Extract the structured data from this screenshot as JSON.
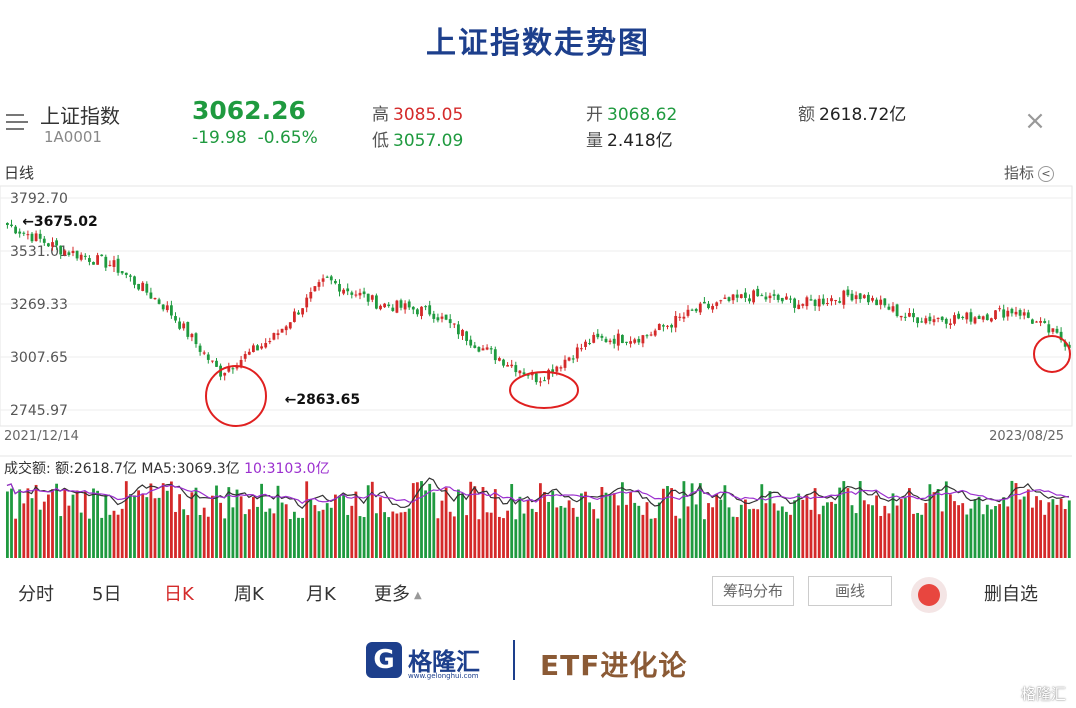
{
  "page_title": "上证指数走势图",
  "quote": {
    "name": "上证指数",
    "code": "1A0001",
    "price": "3062.26",
    "change": "-19.98",
    "change_pct": "-0.65%",
    "high_label": "高",
    "high": "3085.05",
    "low_label": "低",
    "low": "3057.09",
    "open_label": "开",
    "open": "3068.62",
    "volume_label": "量",
    "volume": "2.418亿",
    "amount_label": "额",
    "amount": "2618.72亿"
  },
  "chart": {
    "period_label": "日线",
    "indicator_label": "指标",
    "start_date": "2021/12/14",
    "end_date": "2023/08/25",
    "y_ticks": [
      "3792.70",
      "3531.01",
      "3269.33",
      "3007.65",
      "2745.97"
    ],
    "annotation_high": "←3675.02",
    "annotation_low": "←2863.65"
  },
  "volume": {
    "label": "成交额:",
    "amount_text": "额:2618.7亿",
    "ma5_text": "MA5:3069.3亿",
    "ma10_text": "10:3103.0亿"
  },
  "tabs": [
    "分时",
    "5日",
    "日K",
    "周K",
    "月K",
    "更多"
  ],
  "active_tab": "日K",
  "buttons": {
    "chips": "筹码分布",
    "draw": "画线",
    "remove": "删自选"
  },
  "footer": {
    "logo_char": "G",
    "logo_text": "格隆汇",
    "logo_url": "www.gelonghui.com",
    "etf_text": "ETF进化论",
    "watermark": "格隆汇"
  },
  "colors": {
    "up": "#d42a2a",
    "down": "#1f9a3f",
    "ma10": "#9b2fcf",
    "brand": "#1d3f8c"
  },
  "chart_data": {
    "type": "line",
    "y_axis_ticks": [
      3792.7,
      3531.01,
      3269.33,
      3007.65,
      2745.97
    ],
    "ylim": [
      2745.97,
      3792.7
    ],
    "x_range": [
      "2021/12/14",
      "2023/08/25"
    ],
    "annotations": [
      {
        "text": "←3675.02",
        "value": 3675.02,
        "date": "2021/12/14"
      },
      {
        "text": "←2863.65",
        "value": 2863.65,
        "date": "2022/04/27"
      }
    ],
    "x": [
      "2021-12",
      "2022-01",
      "2022-02",
      "2022-03",
      "2022-04",
      "2022-05",
      "2022-06",
      "2022-07",
      "2022-08",
      "2022-09",
      "2022-10",
      "2022-11",
      "2022-12",
      "2023-01",
      "2023-02",
      "2023-03",
      "2023-04",
      "2023-05",
      "2023-06",
      "2023-07",
      "2023-08"
    ],
    "values": [
      3660,
      3540,
      3460,
      3250,
      2930,
      3100,
      3390,
      3270,
      3230,
      3040,
      2900,
      3090,
      3110,
      3240,
      3310,
      3270,
      3320,
      3200,
      3200,
      3240,
      3070
    ],
    "volume_series": [
      {
        "name": "MA5",
        "values": []
      },
      {
        "name": "MA10",
        "values": []
      }
    ]
  }
}
